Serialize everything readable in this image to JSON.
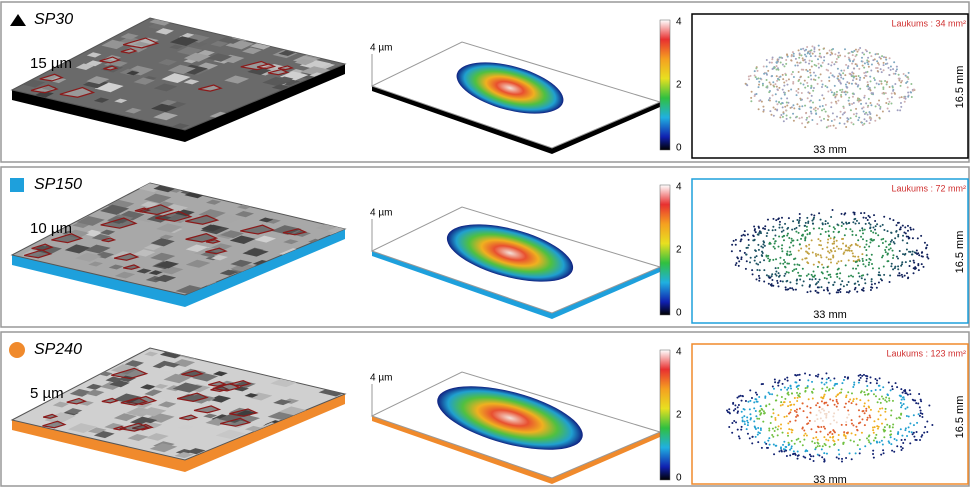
{
  "rows": [
    {
      "name": "SP30",
      "marker": "triangle",
      "color": "#000000",
      "height": "15 µm",
      "scale": "4 µm",
      "colorbar_ticks": [
        "4",
        "2",
        "0"
      ],
      "area": "Laukums : 34 mm²",
      "width": "33 mm",
      "depth": "16.5 mm"
    },
    {
      "name": "SP150",
      "marker": "square",
      "color": "#1ea0dc",
      "height": "10 µm",
      "scale": "4 µm",
      "colorbar_ticks": [
        "4",
        "2",
        "0"
      ],
      "area": "Laukums : 72 mm²",
      "width": "33 mm",
      "depth": "16.5 mm"
    },
    {
      "name": "SP240",
      "marker": "circle",
      "color": "#f08a2c",
      "height": "5 µm",
      "scale": "4 µm",
      "colorbar_ticks": [
        "4",
        "2",
        "0"
      ],
      "area": "Laukums : 123 mm²",
      "width": "33 mm",
      "depth": "16.5 mm"
    }
  ]
}
